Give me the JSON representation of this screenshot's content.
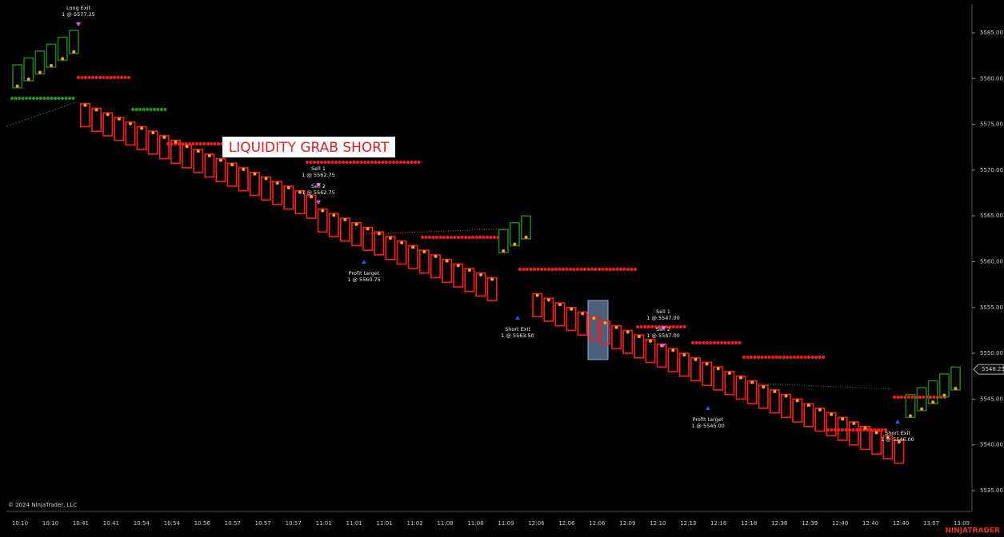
{
  "chart_data": {
    "type": "renko",
    "ylim": [
      5533.43,
      5588.14
    ],
    "yticks": [
      {
        "value": 5535,
        "label": "5535.00"
      },
      {
        "value": 5540,
        "label": "5540.00"
      },
      {
        "value": 5545,
        "label": "5545.00"
      },
      {
        "value": 5550,
        "label": "5550.00"
      },
      {
        "value": 5555,
        "label": "5555.00"
      },
      {
        "value": 5560,
        "label": "5560.00"
      },
      {
        "value": 5565,
        "label": "5565.00"
      },
      {
        "value": 5570,
        "label": "5570.00"
      },
      {
        "value": 5575,
        "label": "5575.00"
      },
      {
        "value": 5580,
        "label": "5580.00"
      },
      {
        "value": 5585,
        "label": "5585.00"
      }
    ],
    "time_labels": [
      "10:10",
      "10:10",
      "10:41",
      "10:41",
      "10:54",
      "10:54",
      "10:56",
      "10:57",
      "10:57",
      "10:57",
      "11:01",
      "11:01",
      "11:01",
      "11:02",
      "11:08",
      "11:08",
      "11:09",
      "12:06",
      "12:06",
      "12:06",
      "12:09",
      "12:10",
      "12:13",
      "12:16",
      "12:18",
      "12:38",
      "12:39",
      "12:40",
      "12:40",
      "12:40",
      "13:07",
      "13:09"
    ],
    "up_color": "#1f7a1f",
    "down_color": "#ff1a1a",
    "open": [
      5579,
      5579.75,
      5580.5,
      5581.25,
      5582,
      5582.75,
      5577.25,
      5576.75,
      5576.25,
      5575.75,
      5575.25,
      5574.75,
      5574.25,
      5573.75,
      5573.25,
      5572.75,
      5572.25,
      5571.75,
      5571.25,
      5570.75,
      5570.25,
      5569.75,
      5569.25,
      5568.75,
      5568.25,
      5567.75,
      5567.25,
      5565.75,
      5565.25,
      5564.75,
      5564.25,
      5563.75,
      5563.25,
      5562.75,
      5562.25,
      5561.75,
      5561.25,
      5560.75,
      5560.25,
      5559.75,
      5559.25,
      5558.75,
      5558.25,
      5561,
      5561.75,
      5562.5,
      5556.5,
      5556,
      5555.5,
      5555,
      5554.5,
      5554,
      5553.5,
      5553,
      5552.5,
      5552,
      5551.5,
      5551,
      5550.5,
      5550,
      5549.5,
      5549,
      5548.5,
      5548,
      5547.5,
      5547,
      5546.5,
      5546,
      5545.5,
      5545,
      5544.5,
      5544,
      5543.5,
      5543,
      5542.5,
      5542,
      5541.5,
      5541,
      5540.5,
      5543,
      5543.75,
      5544.5,
      5545.25,
      5546
    ],
    "close": [
      5581.5,
      5582.25,
      5583,
      5583.75,
      5584.5,
      5585.25,
      5574.75,
      5574.25,
      5573.75,
      5573.25,
      5572.75,
      5572.25,
      5571.75,
      5571.25,
      5570.75,
      5570.25,
      5569.75,
      5569.25,
      5568.75,
      5568.25,
      5567.75,
      5567.25,
      5566.75,
      5566.25,
      5565.75,
      5565.25,
      5564.75,
      5563.25,
      5562.75,
      5562.25,
      5561.75,
      5561.25,
      5560.75,
      5560.25,
      5559.75,
      5559.25,
      5558.75,
      5558.25,
      5557.75,
      5557.25,
      5556.75,
      5556.25,
      5555.75,
      5563.5,
      5564.25,
      5565,
      5554,
      5553.5,
      5553,
      5552.5,
      5552,
      5551.5,
      5551,
      5550.5,
      5550,
      5549.5,
      5549,
      5548.5,
      5548,
      5547.5,
      5547,
      5546.5,
      5546,
      5545.5,
      5545,
      5544.5,
      5544,
      5543.5,
      5543,
      5542.5,
      5542,
      5541.5,
      5541,
      5540.5,
      5540,
      5539.5,
      5539,
      5538.5,
      5538,
      5545.5,
      5546.25,
      5547,
      5547.75,
      5548.5
    ],
    "last_price": {
      "value": 5548.25,
      "label": "5548.25"
    },
    "banner": "LIQUIDITY GRAB SHORT",
    "annotations": [
      {
        "title": "Long Exit",
        "text": "1 @ 5577.25"
      },
      {
        "title": "Sell 1",
        "text": "1 @ 5562.75"
      },
      {
        "title": "Sell 2",
        "text": "1 @ 5562.75"
      },
      {
        "title": "Profit target",
        "text": "1 @ 5560.75"
      },
      {
        "title": "Short Exit",
        "text": "1 @ 5563.50"
      },
      {
        "title": "Sell 1",
        "text": "1 @ 5547.00"
      },
      {
        "title": "Sell 2",
        "text": "1 @ 5547.00"
      },
      {
        "title": "Profit target",
        "text": "1 @ 5545.00"
      },
      {
        "title": "Short Exit",
        "text": "1 @ 5546.00"
      }
    ],
    "copyright": "© 2024 NinjaTrader, LLC",
    "brand": "NINJATRADER"
  }
}
